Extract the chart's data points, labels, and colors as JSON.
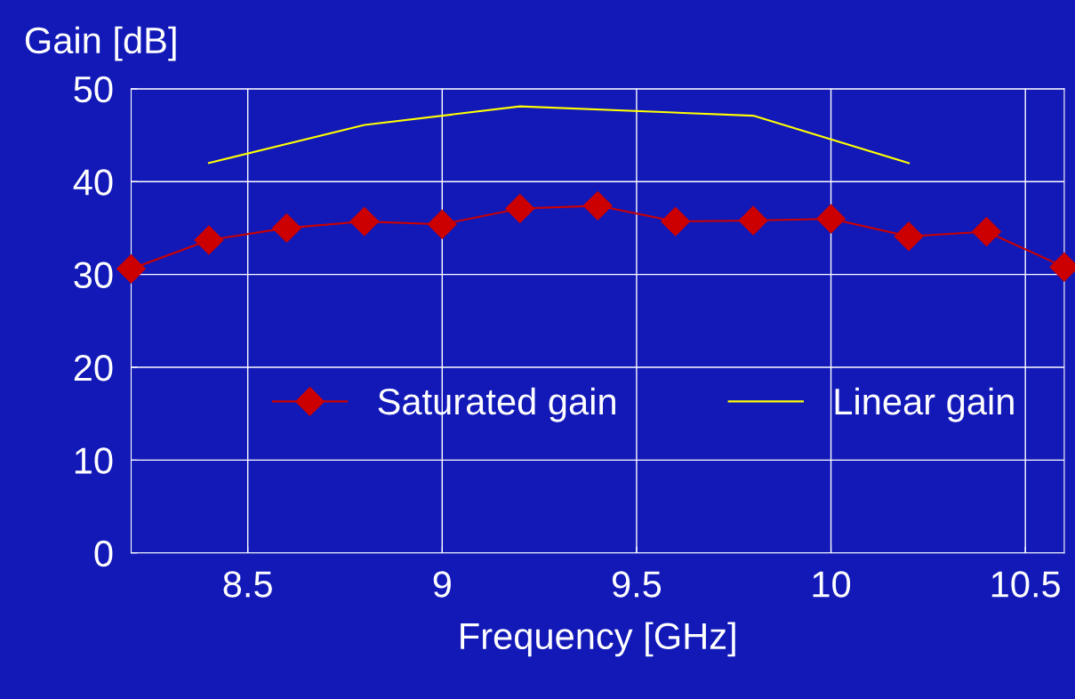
{
  "chart_data": {
    "type": "line",
    "xlabel": "Frequency [GHz]",
    "ylabel": "Gain [dB]",
    "xlim": [
      8.2,
      10.6
    ],
    "xticks": [
      8.5,
      9,
      9.5,
      10,
      10.5
    ],
    "ylim": [
      0,
      50
    ],
    "yticks": [
      0,
      10,
      20,
      30,
      40,
      50
    ],
    "grid": true,
    "legend": "bottom",
    "series": [
      {
        "name": "Saturated gain",
        "color": "#cc0000",
        "marker": "diamond",
        "x": [
          8.2,
          8.4,
          8.6,
          8.8,
          9.0,
          9.2,
          9.4,
          9.6,
          9.8,
          10.0,
          10.2,
          10.4,
          10.6
        ],
        "values": [
          30.6,
          33.7,
          35.0,
          35.7,
          35.4,
          37.1,
          37.4,
          35.7,
          35.8,
          36.0,
          34.1,
          34.6,
          30.8
        ]
      },
      {
        "name": "Linear gain",
        "color": "#ffff00",
        "marker": "none",
        "x": [
          8.4,
          8.8,
          9.2,
          9.8,
          10.2
        ],
        "values": [
          42.0,
          46.1,
          48.1,
          47.1,
          42.0
        ]
      }
    ]
  }
}
